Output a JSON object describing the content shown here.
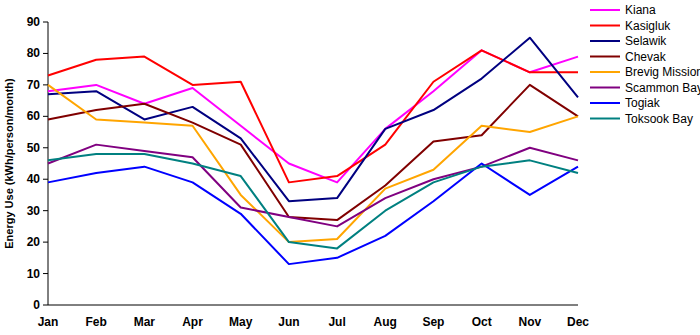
{
  "chart_data": {
    "type": "line",
    "y_label": "Energy Use (kWh/person/month)",
    "categories": [
      "Jan",
      "Feb",
      "Mar",
      "Apr",
      "May",
      "Jun",
      "Jul",
      "Aug",
      "Sep",
      "Oct",
      "Nov",
      "Dec"
    ],
    "series": [
      {
        "name": "Kiana",
        "color": "#ff00ff",
        "values": [
          68,
          70,
          64,
          69,
          57,
          45,
          39,
          56,
          68,
          81,
          74,
          79
        ]
      },
      {
        "name": "Kasigluk",
        "color": "#ff0000",
        "values": [
          73,
          78,
          79,
          70,
          71,
          39,
          41,
          51,
          71,
          81,
          74,
          74
        ]
      },
      {
        "name": "Selawik",
        "color": "#000080",
        "values": [
          67,
          68,
          59,
          63,
          53,
          33,
          34,
          56,
          62,
          72,
          85,
          66
        ]
      },
      {
        "name": "Chevak",
        "color": "#800000",
        "values": [
          59,
          62,
          64,
          58,
          51,
          28,
          27,
          38,
          52,
          54,
          70,
          60
        ]
      },
      {
        "name": "Brevig Mission",
        "color": "#ffa500",
        "values": [
          70,
          59,
          58,
          57,
          35,
          20,
          21,
          37,
          43,
          57,
          55,
          60
        ]
      },
      {
        "name": "Scammon Bay",
        "color": "#800080",
        "values": [
          45,
          51,
          49,
          47,
          31,
          28,
          25,
          34,
          40,
          44,
          50,
          46
        ]
      },
      {
        "name": "Togiak",
        "color": "#0000ff",
        "values": [
          39,
          42,
          44,
          39,
          29,
          13,
          15,
          22,
          33,
          45,
          35,
          44
        ]
      },
      {
        "name": "Toksook Bay",
        "color": "#008080",
        "values": [
          46,
          48,
          48,
          45,
          41,
          20,
          18,
          30,
          39,
          44,
          46,
          42
        ]
      }
    ],
    "ylim": [
      0,
      90
    ],
    "yticks": [
      0,
      10,
      20,
      30,
      40,
      50,
      60,
      70,
      80,
      90
    ],
    "grid": false,
    "legend": "right"
  }
}
